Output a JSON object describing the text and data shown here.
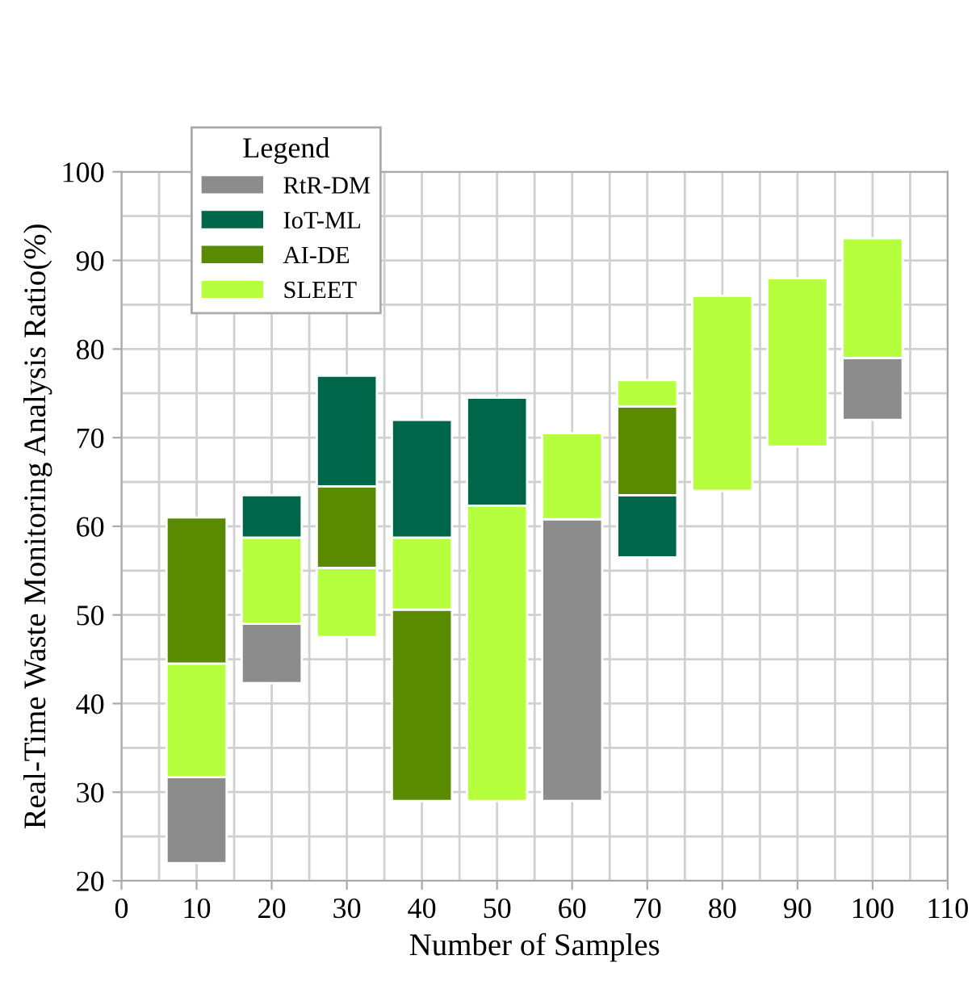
{
  "chart_data": {
    "type": "bar",
    "xlabel": "Number of Samples",
    "ylabel": "Real-Time Waste Monitoring Analysis Ratio(%)",
    "legend_title": "Legend",
    "legend": "top left",
    "grid": true,
    "x": [
      10,
      20,
      30,
      40,
      50,
      60,
      70,
      80,
      90,
      100
    ],
    "xlim": [
      0,
      110
    ],
    "xticks": [
      0,
      10,
      20,
      30,
      40,
      50,
      60,
      70,
      80,
      90,
      100,
      110
    ],
    "ylim": [
      20,
      100
    ],
    "yticks": [
      20,
      30,
      40,
      50,
      60,
      70,
      80,
      90,
      100
    ],
    "series": [
      {
        "name": "RtR-DM",
        "color": "#8c8c8c",
        "base": [
          22,
          42.3,
          null,
          null,
          null,
          29,
          null,
          null,
          null,
          72
        ],
        "values": [
          9.7,
          6.7,
          null,
          null,
          null,
          31.8,
          null,
          null,
          null,
          7
        ]
      },
      {
        "name": "IoT-ML",
        "color": "#00664a",
        "base": [
          null,
          58.7,
          64.5,
          58.7,
          62.3,
          null,
          56.5,
          null,
          null,
          null
        ],
        "values": [
          null,
          4.8,
          12.5,
          13.3,
          12.2,
          null,
          7,
          null,
          null,
          null
        ]
      },
      {
        "name": "AI-DE",
        "color": "#5a8a00",
        "base": [
          44.5,
          null,
          55.3,
          29,
          null,
          null,
          63.5,
          null,
          null,
          null
        ],
        "values": [
          16.5,
          null,
          9.2,
          21.6,
          null,
          null,
          10,
          null,
          null,
          null
        ]
      },
      {
        "name": "SLEET",
        "color": "#b5ff3c",
        "base": [
          31.7,
          49,
          47.5,
          50.6,
          29,
          60.8,
          73.5,
          64,
          69,
          79
        ],
        "values": [
          12.8,
          9.7,
          7.8,
          8.1,
          33.3,
          9.7,
          3,
          22,
          19,
          13.5
        ]
      }
    ]
  }
}
